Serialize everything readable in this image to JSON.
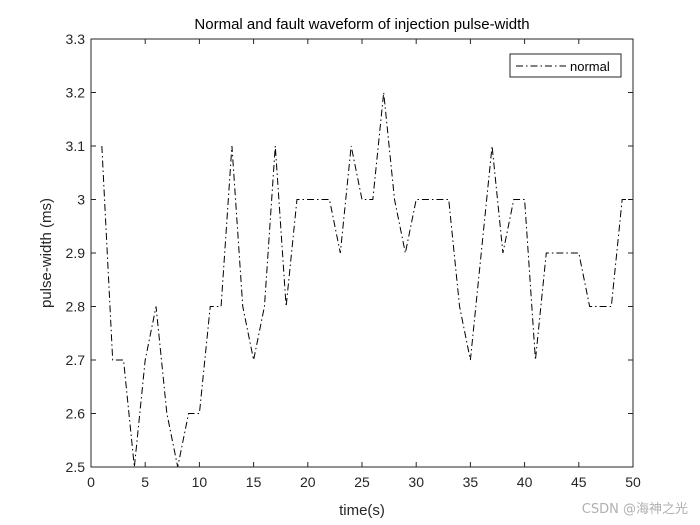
{
  "chart_data": {
    "type": "line",
    "title": "Normal and fault waveform of injection pulse-width",
    "xlabel": "time(s)",
    "ylabel": "pulse-width (ms)",
    "xlim": [
      0,
      50
    ],
    "ylim": [
      2.5,
      3.3
    ],
    "xticks": [
      0,
      5,
      10,
      15,
      20,
      25,
      30,
      35,
      40,
      45,
      50
    ],
    "yticks": [
      2.5,
      2.6,
      2.7,
      2.8,
      2.9,
      3,
      3.1,
      3.2,
      3.3
    ],
    "xtick_labels": [
      "0",
      "5",
      "10",
      "15",
      "20",
      "25",
      "30",
      "35",
      "40",
      "45",
      "50"
    ],
    "ytick_labels": [
      "2.5",
      "2.6",
      "2.7",
      "2.8",
      "2.9",
      "3",
      "3.1",
      "3.2",
      "3.3"
    ],
    "legend_position": "top-right",
    "grid": false,
    "series": [
      {
        "name": "normal",
        "color": "#000000",
        "line_style": "dash-dot",
        "x": [
          1,
          2,
          3,
          4,
          5,
          6,
          7,
          8,
          9,
          10,
          11,
          12,
          13,
          14,
          15,
          16,
          17,
          18,
          19,
          20,
          21,
          22,
          23,
          24,
          25,
          26,
          27,
          28,
          29,
          30,
          31,
          32,
          33,
          34,
          35,
          36,
          37,
          38,
          39,
          40,
          41,
          42,
          43,
          44,
          45,
          46,
          47,
          48,
          49,
          50
        ],
        "y": [
          3.1,
          2.7,
          2.7,
          2.5,
          2.7,
          2.8,
          2.6,
          2.5,
          2.6,
          2.6,
          2.8,
          2.8,
          3.1,
          2.8,
          2.7,
          2.8,
          3.1,
          2.8,
          3.0,
          3.0,
          3.0,
          3.0,
          2.9,
          3.1,
          3.0,
          3.0,
          3.2,
          3.0,
          2.9,
          3.0,
          3.0,
          3.0,
          3.0,
          2.8,
          2.7,
          2.9,
          3.1,
          2.9,
          3.0,
          3.0,
          2.7,
          2.9,
          2.9,
          2.9,
          2.9,
          2.8,
          2.8,
          2.8,
          3.0,
          3.0
        ]
      }
    ]
  },
  "watermark": "CSDN @海神之光"
}
